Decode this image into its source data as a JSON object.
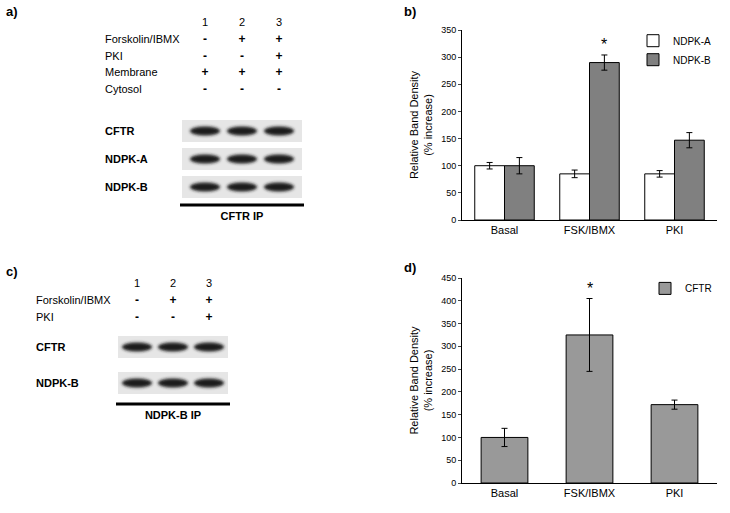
{
  "panel_labels": [
    "a)",
    "b)",
    "c)",
    "d)"
  ],
  "blots": [
    {
      "lanes": [
        "1",
        "2",
        "3"
      ],
      "conditions": [
        {
          "label": "Forskolin/IBMX",
          "lanes": [
            "-",
            "+",
            "+"
          ]
        },
        {
          "label": "PKI",
          "lanes": [
            "-",
            "-",
            "+"
          ]
        },
        {
          "label": "Membrane",
          "lanes": [
            "+",
            "+",
            "+"
          ]
        },
        {
          "label": "Cytosol",
          "lanes": [
            "-",
            "-",
            "-"
          ]
        }
      ],
      "bands": [
        "CFTR",
        "NDPK-A",
        "NDPK-B"
      ],
      "ip": "CFTR IP"
    },
    {
      "lanes": [
        "1",
        "2",
        "3"
      ],
      "conditions": [
        {
          "label": "Forskolin/IBMX",
          "lanes": [
            "-",
            "+",
            "+"
          ]
        },
        {
          "label": "PKI",
          "lanes": [
            "-",
            "-",
            "+"
          ]
        }
      ],
      "bands": [
        "CFTR",
        "NDPK-B"
      ],
      "ip": "NDPK-B IP"
    }
  ],
  "chart_data": [
    {
      "type": "bar",
      "ylabel": "Relative Band Density\n(% increase)",
      "categories": [
        "Basal",
        "FSK/IBMX",
        "PKI"
      ],
      "series": [
        {
          "name": "NDPK-A",
          "color": "#ffffff",
          "values": [
            100,
            85,
            85
          ],
          "errors": [
            6,
            7,
            6
          ]
        },
        {
          "name": "NDPK-B",
          "color": "#808080",
          "values": [
            100,
            290,
            147
          ],
          "errors": [
            15,
            14,
            14
          ]
        }
      ],
      "ylim": [
        0,
        350
      ],
      "yticks": [
        0,
        50,
        100,
        150,
        200,
        250,
        300,
        350
      ],
      "grid": false,
      "legend": "upper right",
      "annotations": [
        {
          "text": "*",
          "category": "FSK/IBMX",
          "series": "NDPK-B"
        }
      ]
    },
    {
      "type": "bar",
      "ylabel": "Relative Band Density\n(% increase)",
      "categories": [
        "Basal",
        "FSK/IBMX",
        "PKI"
      ],
      "series": [
        {
          "name": "CFTR",
          "color": "#999999",
          "values": [
            100,
            325,
            172
          ],
          "errors": [
            20,
            80,
            10
          ]
        }
      ],
      "ylim": [
        0,
        450
      ],
      "yticks": [
        0,
        50,
        100,
        150,
        200,
        250,
        300,
        350,
        400,
        450
      ],
      "grid": false,
      "legend": "upper right",
      "annotations": [
        {
          "text": "*",
          "category": "FSK/IBMX",
          "series": "CFTR"
        }
      ]
    }
  ]
}
